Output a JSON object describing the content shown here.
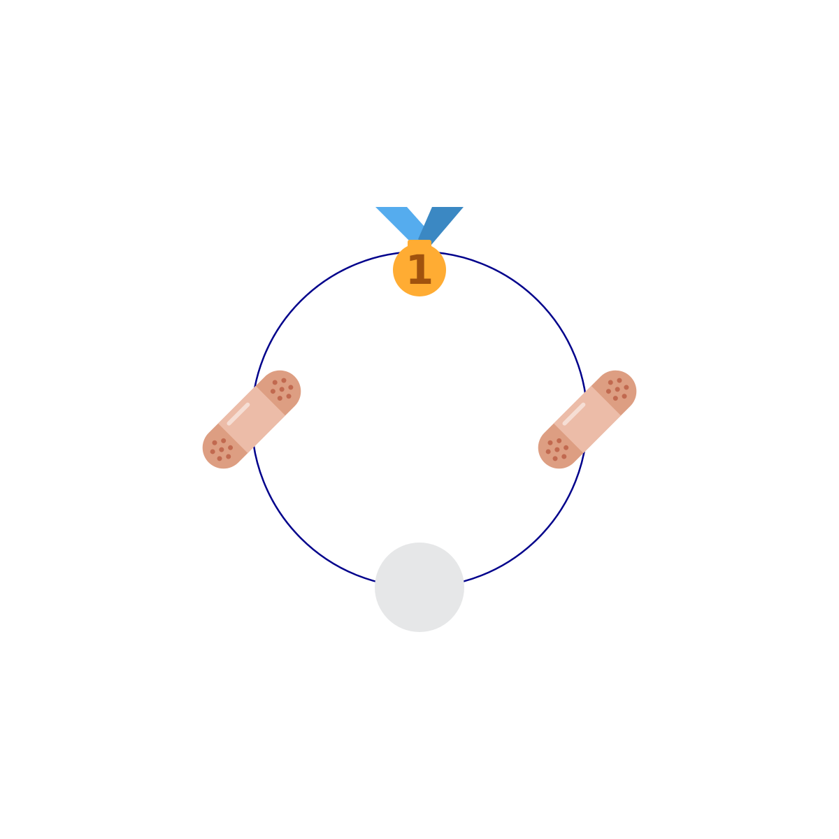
{
  "diagram": {
    "ring_color": "#00008b",
    "nodes": [
      {
        "id": "top",
        "icon": "first-place-medal-icon",
        "label": "1"
      },
      {
        "id": "right",
        "icon": "adhesive-bandage-icon"
      },
      {
        "id": "bottom",
        "icon": "empty-circle-icon"
      },
      {
        "id": "left",
        "icon": "adhesive-bandage-icon"
      }
    ]
  },
  "colors": {
    "ribbon_light": "#55acee",
    "ribbon_dark": "#3b88c3",
    "medal": "#ffac33",
    "medal_number": "#a0520e",
    "bandage_end": "#dd9e82",
    "bandage_pad": "#ecbca8",
    "bandage_dot": "#c1694f",
    "empty_node": "#e6e7e8"
  }
}
